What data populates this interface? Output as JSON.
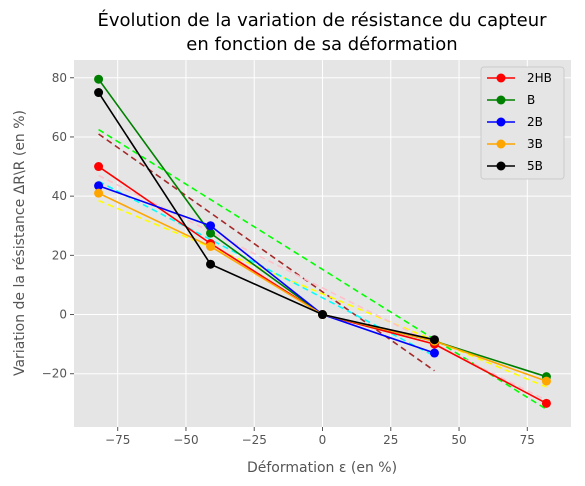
{
  "chart_data": {
    "type": "line",
    "title_line1": "Évolution de la variation de résistance du capteur",
    "title_line2": "en fonction de sa déformation",
    "xlabel": "Déformation ε (en %)",
    "ylabel": "Variation de la résistance ΔR\\R (en %)",
    "xlim": [
      -91,
      91
    ],
    "ylim": [
      -38,
      86
    ],
    "xticks": [
      -75,
      -50,
      -25,
      0,
      25,
      50,
      75
    ],
    "yticks": [
      -20,
      0,
      20,
      40,
      60,
      80
    ],
    "grid": true,
    "legend_position": "top-right",
    "background": "#e5e5e5",
    "series": [
      {
        "name": "2HB",
        "color": "#ff0000",
        "x": [
          -82,
          -41,
          0,
          41,
          82
        ],
        "y": [
          50,
          24,
          0,
          -10,
          -30
        ]
      },
      {
        "name": "B",
        "color": "#008000",
        "x": [
          -82,
          -41,
          0,
          41,
          82
        ],
        "y": [
          79.5,
          27.5,
          0,
          -9,
          -21
        ]
      },
      {
        "name": "2B",
        "color": "#0000ff",
        "x": [
          -82,
          -41,
          0,
          41
        ],
        "y": [
          43.5,
          30,
          0,
          -13
        ]
      },
      {
        "name": "3B",
        "color": "#ffa500",
        "x": [
          -82,
          -41,
          0,
          41,
          82
        ],
        "y": [
          41,
          23,
          0,
          -9,
          -22.5
        ]
      },
      {
        "name": "5B",
        "color": "#000000",
        "x": [
          -82,
          -41,
          0,
          41
        ],
        "y": [
          75,
          17,
          0,
          -8.5
        ]
      }
    ],
    "fit_lines": [
      {
        "color": "#00ff00",
        "x": [
          -82,
          82
        ],
        "y": [
          62.5,
          -32
        ]
      },
      {
        "color": "#a52a2a",
        "x": [
          -82,
          41
        ],
        "y": [
          61,
          -19
        ]
      },
      {
        "color": "#ffff00",
        "x": [
          -82,
          82
        ],
        "y": [
          38.5,
          -24.5
        ]
      },
      {
        "color": "#00ffff",
        "x": [
          -82,
          41
        ],
        "y": [
          45,
          -14
        ]
      },
      {
        "color": "#ffc0cb",
        "x": [
          -82,
          82
        ],
        "y": [
          47,
          -29
        ]
      }
    ]
  }
}
